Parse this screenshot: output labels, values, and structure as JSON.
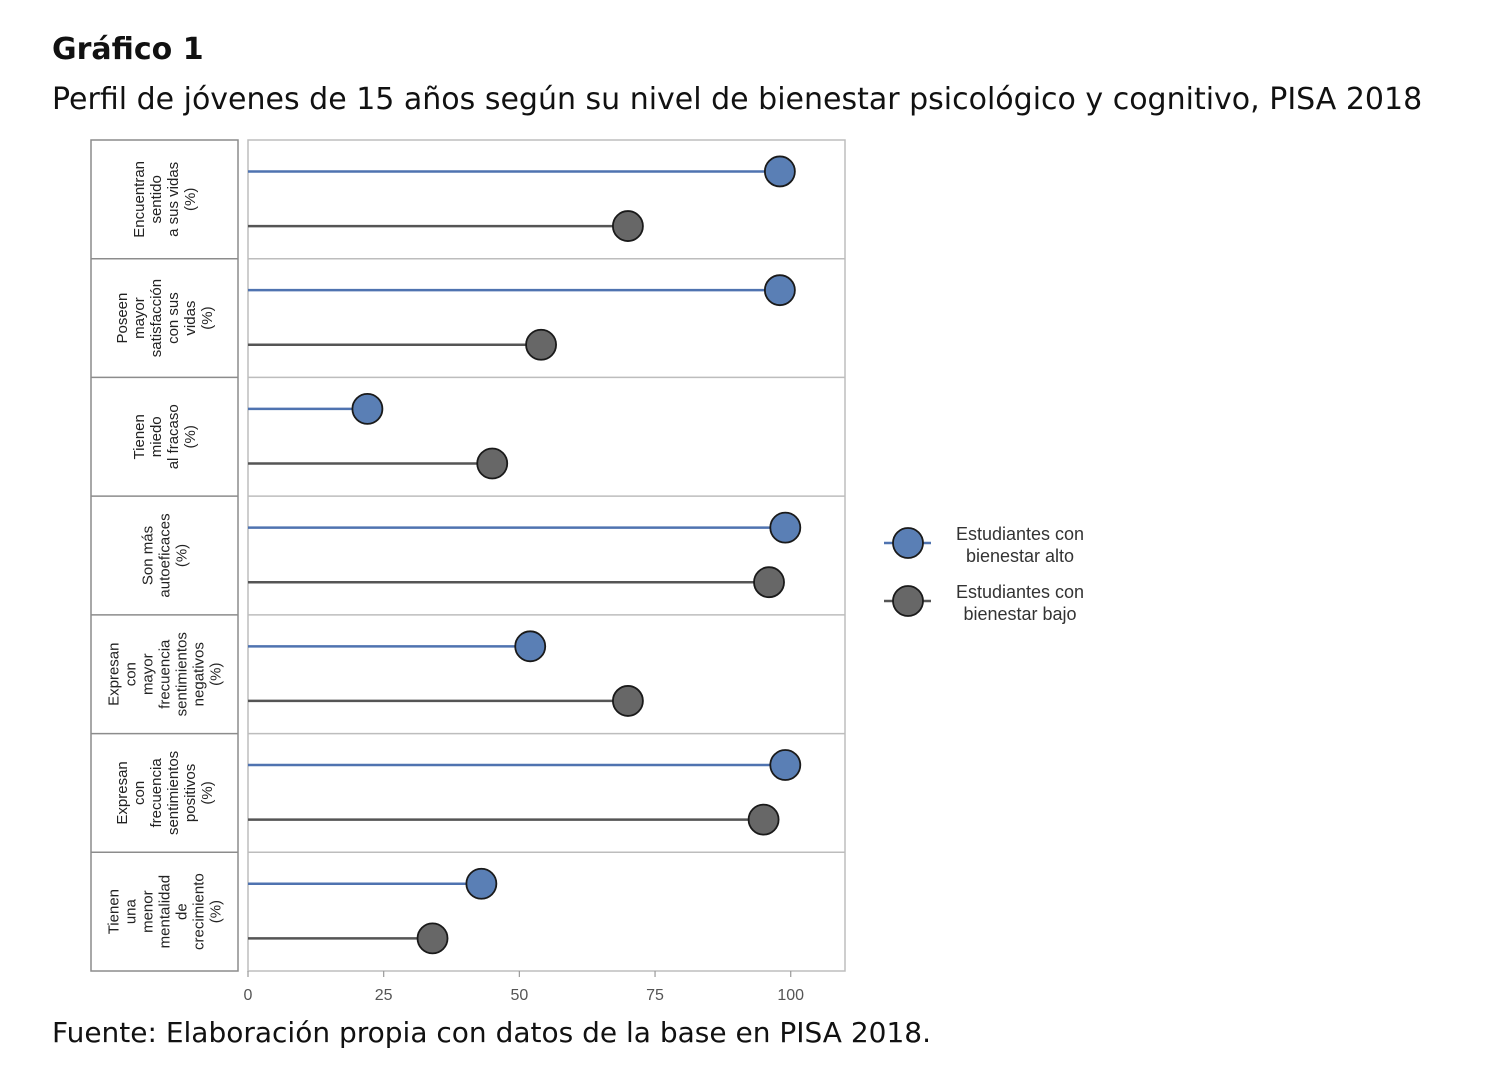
{
  "header": {
    "title": "Gráfico 1",
    "subtitle": "Perfil de jóvenes de 15 años según su nivel de bienestar psicológico y cognitivo, PISA 2018"
  },
  "footer": {
    "source": "Fuente: Elaboración propia con datos de la base en PISA 2018."
  },
  "chart_data": {
    "type": "lollipop",
    "orientation": "horizontal",
    "xlim": [
      0,
      110
    ],
    "x_ticks": [
      0,
      25,
      50,
      75,
      100
    ],
    "grid": false,
    "legend_position": "right",
    "categories": [
      [
        "Encuentran",
        "sentido",
        "a sus vidas",
        "(%)"
      ],
      [
        "Poseen",
        "mayor",
        "satisfacción",
        "con sus",
        "vidas",
        "(%)"
      ],
      [
        "Tienen",
        "miedo",
        "al fracaso",
        "(%)"
      ],
      [
        "Son más",
        "autoeficaces",
        "(%)"
      ],
      [
        "Expresan",
        "con",
        "mayor",
        "frecuencia",
        "sentimientos",
        "negativos",
        "(%)"
      ],
      [
        "Expresan",
        "con",
        "frecuencia",
        "sentimientos",
        "positivos",
        "(%)"
      ],
      [
        "Tienen",
        "una",
        "menor",
        "mentalidad",
        "de",
        "crecimiento",
        "(%)"
      ]
    ],
    "series": [
      {
        "name": [
          "Estudiantes con",
          "bienestar alto"
        ],
        "color": "#5a7fb5",
        "line_color": "#4f73b0",
        "values": [
          98,
          98,
          22,
          99,
          52,
          99,
          43
        ]
      },
      {
        "name": [
          "Estudiantes con",
          "bienestar bajo"
        ],
        "color": "#676767",
        "line_color": "#555555",
        "values": [
          70,
          54,
          45,
          96,
          70,
          95,
          34
        ]
      }
    ]
  }
}
